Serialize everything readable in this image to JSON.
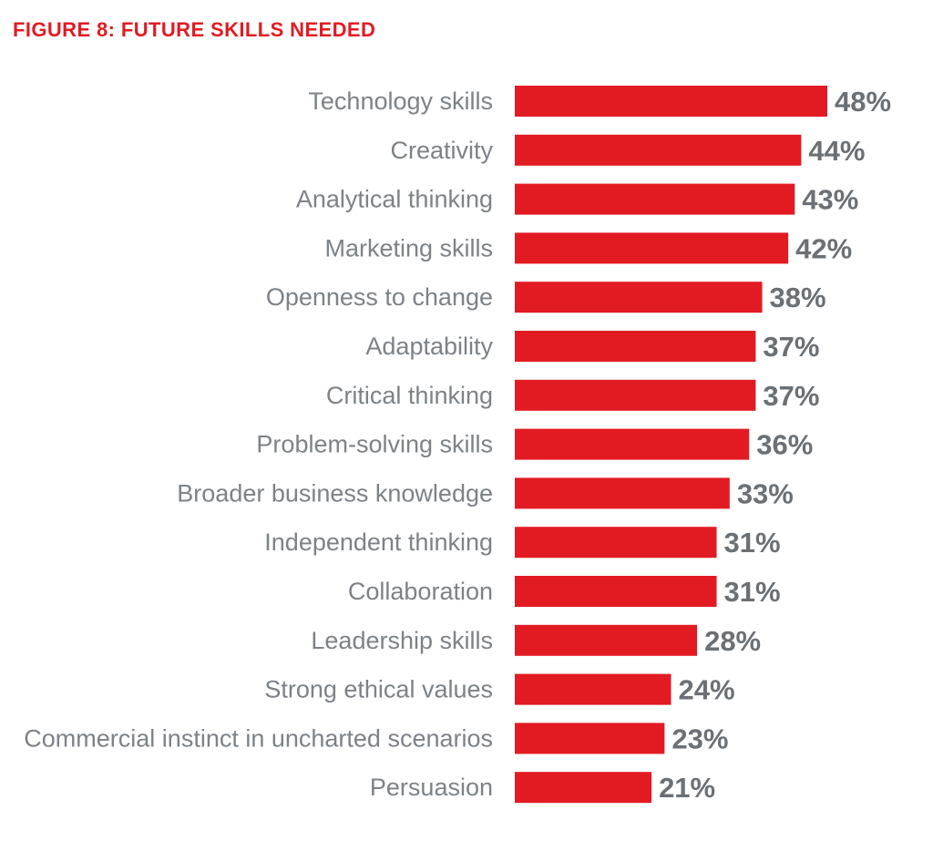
{
  "colors": {
    "bar": "#e21b23",
    "title": "#e21b23",
    "category_text": "#7d8287",
    "value_text": "#6b7075"
  },
  "chart_data": {
    "type": "bar",
    "orientation": "horizontal",
    "title": "FIGURE 8: FUTURE SKILLS NEEDED",
    "value_suffix": "%",
    "xlim": [
      0,
      48
    ],
    "grid": false,
    "legend": "none",
    "categories": [
      "Technology skills",
      "Creativity",
      "Analytical thinking",
      "Marketing skills",
      "Openness to change",
      "Adaptability",
      "Critical thinking",
      "Problem-solving skills",
      "Broader business knowledge",
      "Independent thinking",
      "Collaboration",
      "Leadership skills",
      "Strong ethical values",
      "Commercial instinct in uncharted scenarios",
      "Persuasion"
    ],
    "values": [
      48,
      44,
      43,
      42,
      38,
      37,
      37,
      36,
      33,
      31,
      31,
      28,
      24,
      23,
      21
    ],
    "data_labels": [
      "48%",
      "44%",
      "43%",
      "42%",
      "38%",
      "37%",
      "37%",
      "36%",
      "33%",
      "31%",
      "31%",
      "28%",
      "24%",
      "23%",
      "21%"
    ]
  }
}
